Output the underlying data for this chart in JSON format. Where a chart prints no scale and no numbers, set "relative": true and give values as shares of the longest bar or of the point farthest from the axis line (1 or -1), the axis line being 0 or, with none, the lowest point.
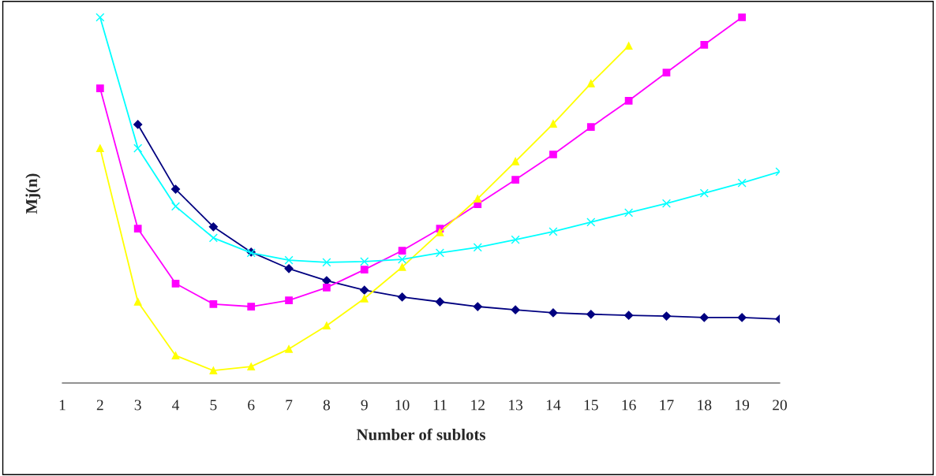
{
  "chart_data": {
    "type": "line",
    "relative": true,
    "xlabel": "Number of sublots",
    "ylabel": "Mj(n)",
    "categories": [
      "1",
      "2",
      "3",
      "4",
      "5",
      "6",
      "7",
      "8",
      "9",
      "10",
      "11",
      "12",
      "13",
      "14",
      "15",
      "16",
      "17",
      "18",
      "19",
      "20"
    ],
    "grid": false,
    "legend": false,
    "series": [
      {
        "color": "#000080",
        "marker": "diamond",
        "values": [
          null,
          null,
          0.707,
          0.53,
          0.427,
          0.358,
          0.313,
          0.28,
          0.254,
          0.235,
          0.222,
          0.209,
          0.2,
          0.192,
          0.188,
          0.185,
          0.183,
          0.179,
          0.179,
          0.175
        ]
      },
      {
        "color": "#ff00ff",
        "marker": "square",
        "values": [
          null,
          0.806,
          0.422,
          0.272,
          0.216,
          0.209,
          0.226,
          0.261,
          0.31,
          0.362,
          0.422,
          0.489,
          0.556,
          0.625,
          0.7,
          0.772,
          0.849,
          0.925,
          1.0,
          null
        ]
      },
      {
        "color": "#ffff00",
        "marker": "triangle",
        "values": [
          null,
          0.642,
          0.222,
          0.075,
          0.034,
          0.045,
          0.093,
          0.157,
          0.231,
          0.317,
          0.412,
          0.504,
          0.606,
          0.709,
          0.819,
          0.922,
          null,
          null,
          null,
          null
        ]
      },
      {
        "color": "#00ffff",
        "marker": "cross",
        "values": [
          null,
          1.0,
          0.642,
          0.483,
          0.397,
          0.356,
          0.336,
          0.33,
          0.332,
          0.338,
          0.356,
          0.371,
          0.392,
          0.414,
          0.44,
          0.466,
          0.491,
          0.519,
          0.547,
          0.578
        ]
      }
    ]
  }
}
